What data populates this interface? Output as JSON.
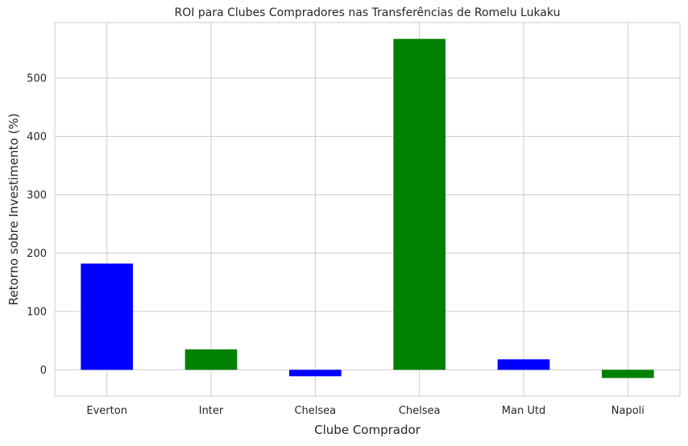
{
  "chart_data": {
    "type": "bar",
    "title": "ROI para Clubes Compradores nas Transferências de Romelu Lukaku",
    "xlabel": "Clube Comprador",
    "ylabel": "Retorno sobre Investimento (%)",
    "categories": [
      "Everton",
      "Inter",
      "Chelsea",
      "Chelsea",
      "Man Utd",
      "Napoli"
    ],
    "values": [
      182,
      35,
      -11,
      567,
      18,
      -14
    ],
    "bar_colors": [
      "#0000ff",
      "#008000",
      "#0000ff",
      "#008000",
      "#0000ff",
      "#008000"
    ],
    "ylim": [
      -45,
      595
    ],
    "yticks": [
      0,
      100,
      200,
      300,
      400,
      500
    ],
    "grid": true,
    "legend": "none"
  }
}
